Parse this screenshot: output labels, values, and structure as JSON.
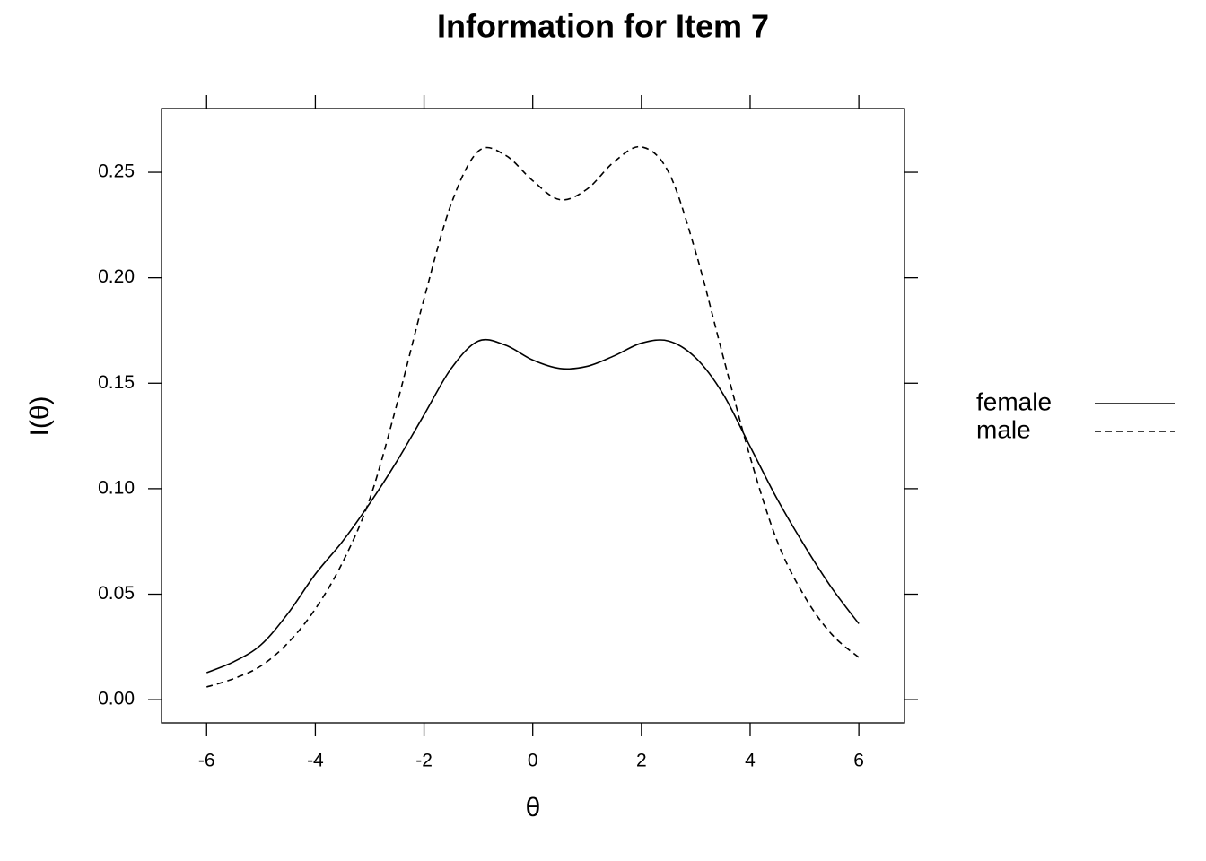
{
  "chart_data": {
    "type": "line",
    "title": "Information for Item 7",
    "xlabel": "θ",
    "ylabel": "I(θ)",
    "x": [
      -6,
      -5.5,
      -5,
      -4.5,
      -4,
      -3.5,
      -3,
      -2.5,
      -2,
      -1.5,
      -1,
      -0.5,
      0,
      0.5,
      1,
      1.5,
      2,
      2.5,
      3,
      3.5,
      4,
      4.5,
      5,
      5.5,
      6
    ],
    "series": [
      {
        "name": "female",
        "color": "#000000",
        "linestyle": "solid",
        "values": [
          0.0128,
          0.018,
          0.026,
          0.041,
          0.0595,
          0.075,
          0.093,
          0.113,
          0.135,
          0.157,
          0.17,
          0.168,
          0.161,
          0.157,
          0.158,
          0.163,
          0.169,
          0.17,
          0.162,
          0.145,
          0.12,
          0.095,
          0.073,
          0.053,
          0.036
        ]
      },
      {
        "name": "male",
        "color": "#000000",
        "linestyle": "dashed",
        "values": [
          0.006,
          0.01,
          0.016,
          0.027,
          0.043,
          0.065,
          0.095,
          0.14,
          0.19,
          0.235,
          0.26,
          0.258,
          0.246,
          0.237,
          0.242,
          0.255,
          0.262,
          0.25,
          0.212,
          0.163,
          0.115,
          0.075,
          0.049,
          0.031,
          0.02
        ]
      }
    ],
    "xlim": [
      -6.83,
      6.84
    ],
    "xticks": [
      -6,
      -4,
      -2,
      0,
      2,
      4,
      6
    ],
    "ylim": [
      -0.011,
      0.2802
    ],
    "yticks": [
      {
        "value": 0,
        "label": "0.00"
      },
      {
        "value": 0.05,
        "label": "0.05"
      },
      {
        "value": 0.1,
        "label": "0.10"
      },
      {
        "value": 0.15,
        "label": "0.15"
      },
      {
        "value": 0.2,
        "label": "0.20"
      },
      {
        "value": 0.25,
        "label": "0.25"
      }
    ],
    "legend": "right"
  }
}
